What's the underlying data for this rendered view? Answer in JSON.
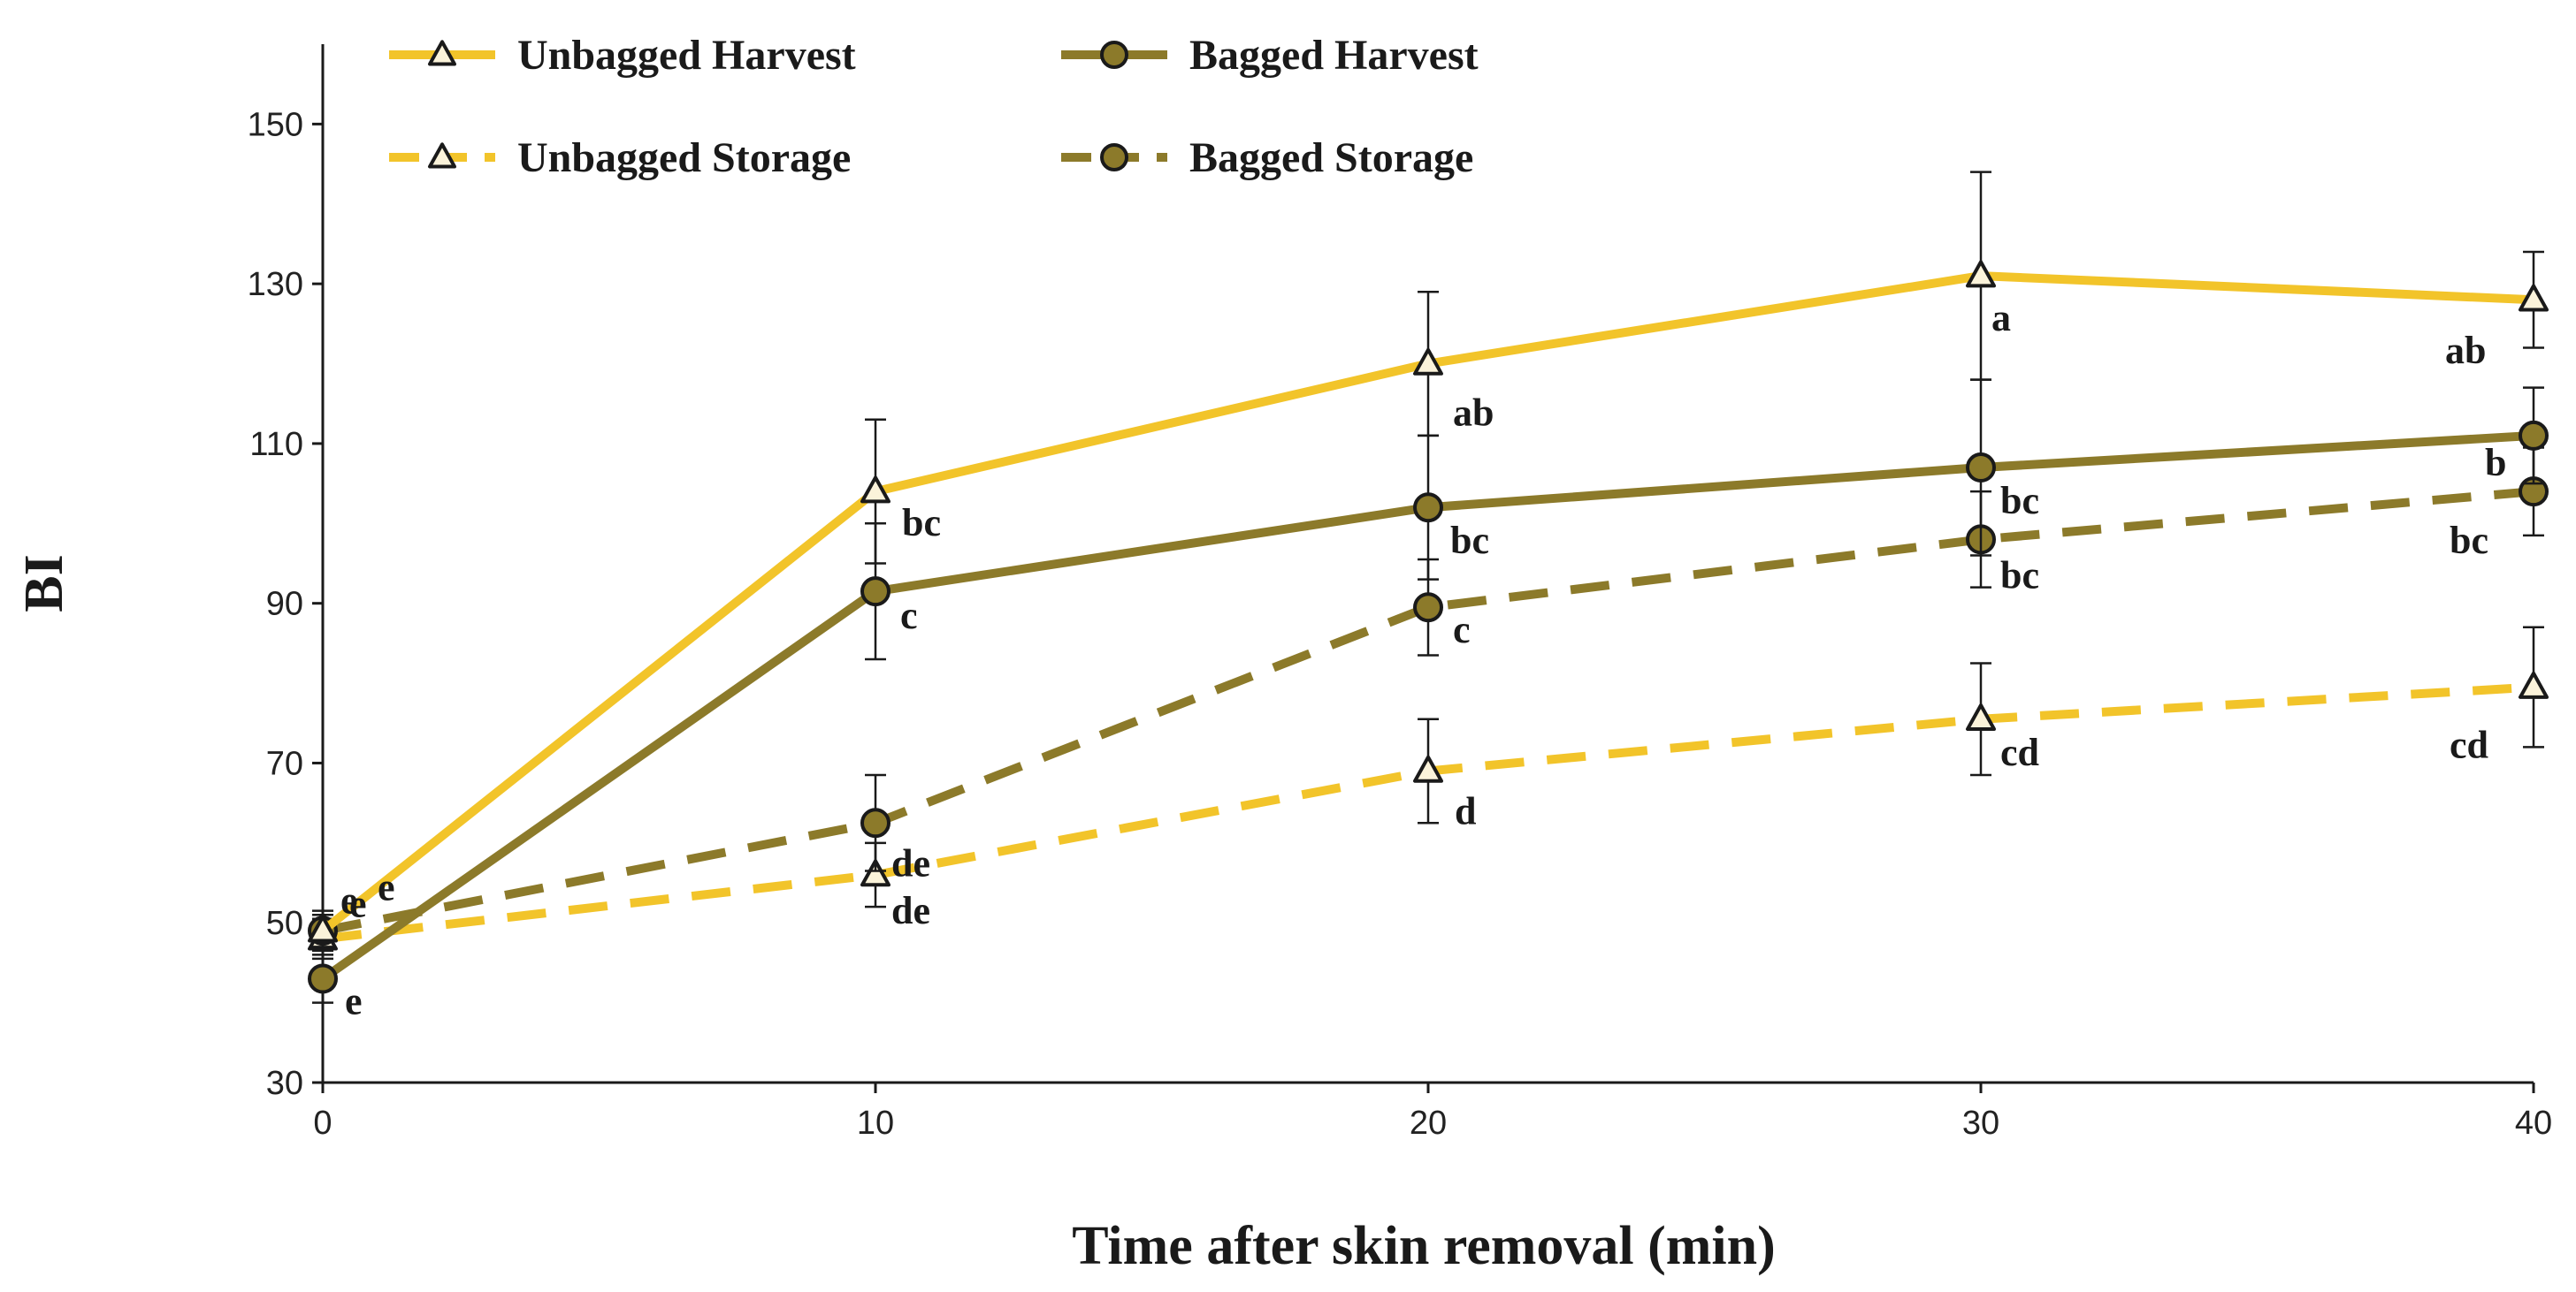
{
  "chart_data": {
    "type": "line",
    "title": "",
    "xlabel": "Time after skin removal (min)",
    "ylabel": "BI",
    "xlim": [
      0,
      40
    ],
    "ylim": [
      30,
      160
    ],
    "xticks": [
      0,
      10,
      20,
      30,
      40
    ],
    "yticks": [
      30,
      50,
      70,
      90,
      110,
      130,
      150
    ],
    "grid": false,
    "legend_position": "top-left",
    "series": [
      {
        "name": "Unbagged Harvest",
        "marker": "triangle",
        "line": "solid",
        "color": "#F2C42A",
        "x": [
          0,
          10,
          20,
          30,
          40
        ],
        "values": [
          49,
          104,
          120,
          131,
          128
        ],
        "error": [
          2,
          9,
          9,
          13,
          6
        ],
        "letters": [
          "e",
          "bc",
          "ab",
          "a",
          "ab"
        ]
      },
      {
        "name": "Bagged Harvest",
        "marker": "circle",
        "line": "solid",
        "color": "#8C7A2A",
        "x": [
          0,
          10,
          20,
          30,
          40
        ],
        "values": [
          43,
          91.5,
          102,
          107,
          111
        ],
        "error": [
          3,
          8.5,
          9,
          11,
          6
        ],
        "letters": [
          "e",
          "c",
          "bc",
          "bc",
          "b"
        ]
      },
      {
        "name": "Unbagged Storage",
        "marker": "triangle",
        "line": "dashed",
        "color": "#F2C42A",
        "x": [
          0,
          10,
          20,
          30,
          40
        ],
        "values": [
          48,
          56,
          69,
          75.5,
          79.5
        ],
        "error": [
          2.5,
          4,
          6.5,
          7,
          7.5
        ],
        "letters": [
          "e",
          "de",
          "d",
          "cd",
          "cd"
        ]
      },
      {
        "name": "Bagged Storage",
        "marker": "circle",
        "line": "dashed",
        "color": "#8C7A2A",
        "x": [
          0,
          10,
          20,
          30,
          40
        ],
        "values": [
          49,
          62.5,
          89.5,
          98,
          104
        ],
        "error": [
          2.5,
          6,
          6,
          6,
          5.5
        ],
        "letters": [
          "e",
          "de",
          "c",
          "bc",
          "bc"
        ]
      }
    ]
  }
}
